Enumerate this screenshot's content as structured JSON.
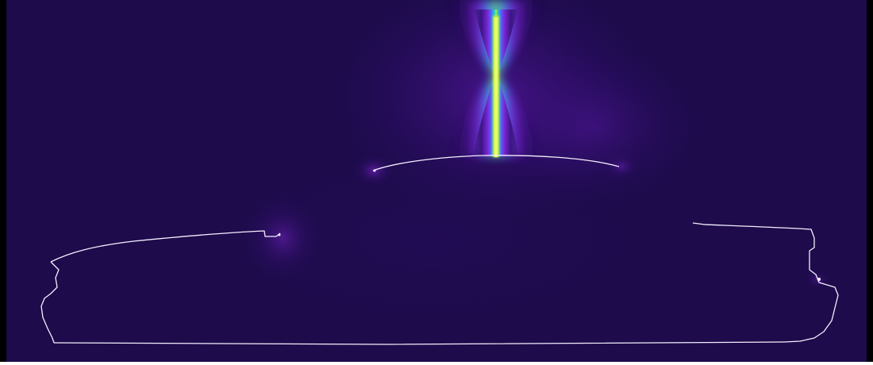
{
  "image": {
    "background_color": "#1d0b4b",
    "frame_color": "#000000",
    "outline_color": "#f4f0ff",
    "colormap": [
      "#1d0b4b",
      "#3a0f7e",
      "#6a1bbf",
      "#9b3cf0",
      "#4d6bff",
      "#2fbcd9",
      "#36d48a",
      "#c8f23a"
    ],
    "objects": [
      "field-plume",
      "vehicle-outline",
      "roof-edge-glow",
      "front-glow",
      "rear-glow"
    ]
  }
}
